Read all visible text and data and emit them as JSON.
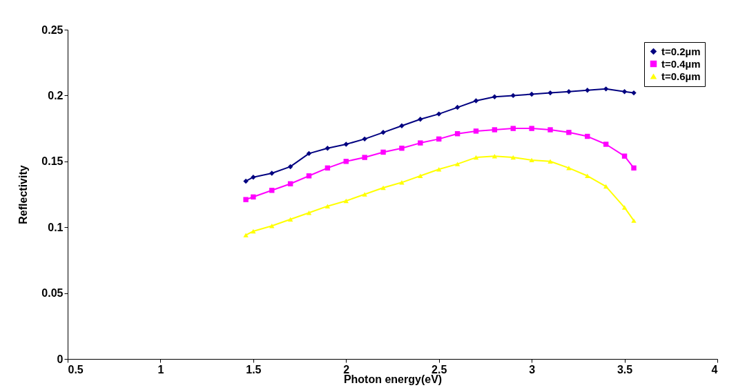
{
  "chart_data": {
    "type": "line",
    "xlabel": "Photon energy(eV)",
    "ylabel": "Reflectivity",
    "xlim": [
      0.5,
      4
    ],
    "xticks": [
      0.5,
      1,
      1.5,
      2,
      2.5,
      3,
      3.5,
      4
    ],
    "ylim": [
      0,
      0.25
    ],
    "yticks": [
      0,
      0.05,
      0.1,
      0.15,
      0.2,
      0.25
    ],
    "grid": false,
    "legend": "top right",
    "line_style": "solid",
    "x": [
      1.46,
      1.5,
      1.6,
      1.7,
      1.8,
      1.9,
      2.0,
      2.1,
      2.2,
      2.3,
      2.4,
      2.5,
      2.6,
      2.7,
      2.8,
      2.9,
      3.0,
      3.1,
      3.2,
      3.3,
      3.4,
      3.5,
      3.55
    ],
    "series": [
      {
        "name": "t=0.2µm",
        "color": "#000080",
        "marker": "diamond",
        "values": [
          0.135,
          0.138,
          0.141,
          0.146,
          0.156,
          0.16,
          0.163,
          0.167,
          0.172,
          0.177,
          0.182,
          0.186,
          0.191,
          0.196,
          0.199,
          0.2,
          0.201,
          0.202,
          0.203,
          0.204,
          0.205,
          0.203,
          0.202
        ]
      },
      {
        "name": "t=0.4µm",
        "color": "#ff00ff",
        "marker": "square",
        "values": [
          0.121,
          0.123,
          0.128,
          0.133,
          0.139,
          0.145,
          0.15,
          0.153,
          0.157,
          0.16,
          0.164,
          0.167,
          0.171,
          0.173,
          0.174,
          0.175,
          0.175,
          0.174,
          0.172,
          0.169,
          0.163,
          0.154,
          0.145
        ]
      },
      {
        "name": "t=0.6µm",
        "color": "#ffff00",
        "marker": "triangle",
        "values": [
          0.094,
          0.097,
          0.101,
          0.106,
          0.111,
          0.116,
          0.12,
          0.125,
          0.13,
          0.134,
          0.139,
          0.144,
          0.148,
          0.153,
          0.154,
          0.153,
          0.151,
          0.15,
          0.145,
          0.139,
          0.131,
          0.115,
          0.105
        ]
      }
    ]
  }
}
